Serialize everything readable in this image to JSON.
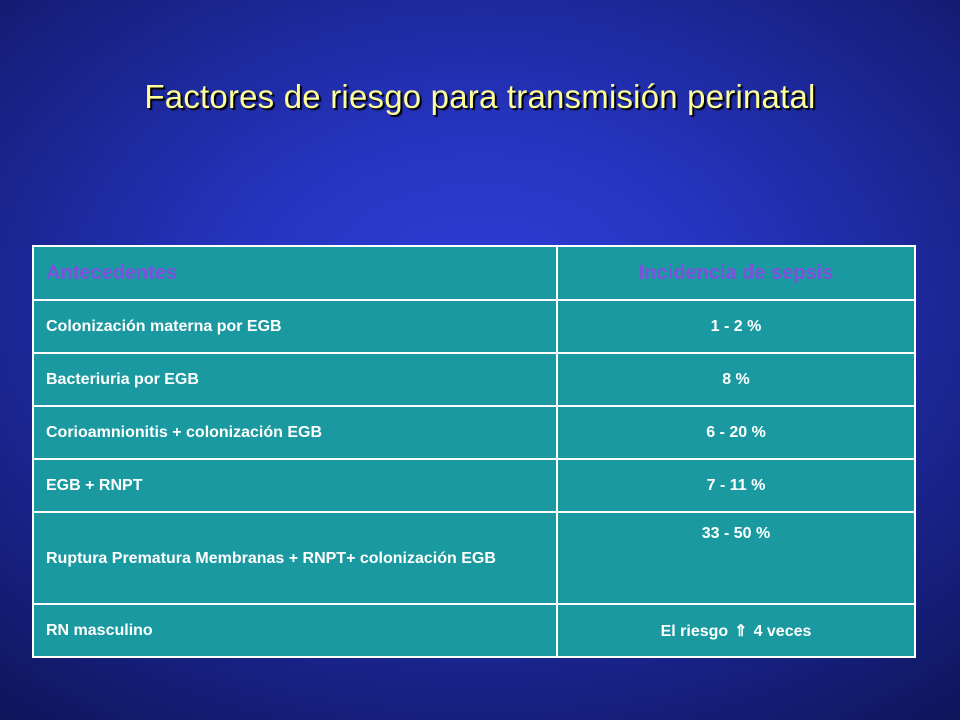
{
  "slide": {
    "title": "Factores de riesgo para transmisión perinatal"
  },
  "table": {
    "headers": [
      "Antecedentes",
      "Incidencia de sepsis"
    ],
    "rows": [
      {
        "factor": "Colonización materna  por EGB",
        "incidence": "1 - 2 %"
      },
      {
        "factor": "Bacteriuria por EGB",
        "incidence": "8 %"
      },
      {
        "factor": "Corioamnionitis + colonización EGB",
        "incidence": "6 - 20 %"
      },
      {
        "factor": "EGB + RNPT",
        "incidence": "7 - 11 %"
      },
      {
        "factor": "Ruptura Prematura Membranas + RNPT+ colonización EGB",
        "incidence": "33 - 50 %"
      },
      {
        "factor": "RN masculino",
        "incidence_prefix": "El riesgo",
        "incidence_icon": "up-arrow-icon",
        "incidence_suffix": "4 veces"
      }
    ]
  },
  "colors": {
    "title": "#ffff99",
    "header_text": "#7f4fe0",
    "table_bg": "#1a9aa0",
    "background": "#2634c0"
  }
}
